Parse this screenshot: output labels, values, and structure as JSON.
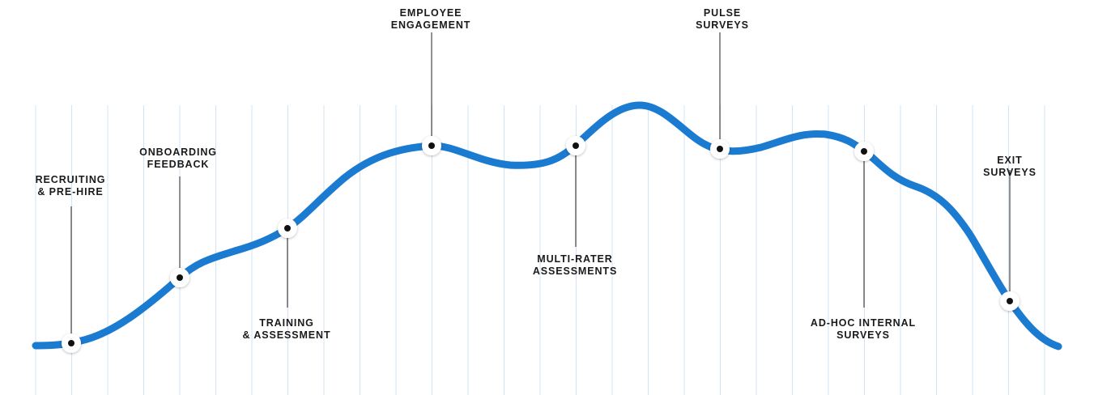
{
  "diagram": {
    "stages": [
      {
        "line1": "RECRUITING",
        "line2": "& PRE-HIRE"
      },
      {
        "line1": "ONBOARDING",
        "line2": "FEEDBACK"
      },
      {
        "line1": "TRAINING",
        "line2": "& ASSESSMENT"
      },
      {
        "line1": "EMPLOYEE",
        "line2": "ENGAGEMENT"
      },
      {
        "line1": "MULTI-RATER",
        "line2": "ASSESSMENTS"
      },
      {
        "line1": "PULSE",
        "line2": "SURVEYS"
      },
      {
        "line1": "AD-HOC INTERNAL",
        "line2": "SURVEYS"
      },
      {
        "line1": "EXIT",
        "line2": "SURVEYS"
      }
    ],
    "colors": {
      "curve": "#1b7bd0",
      "marker_fill": "#ffffff",
      "marker_dot": "#111111",
      "leader_line": "#222222",
      "grid_line": "#d3e3f3",
      "label_text": "#1a1a1a"
    }
  }
}
